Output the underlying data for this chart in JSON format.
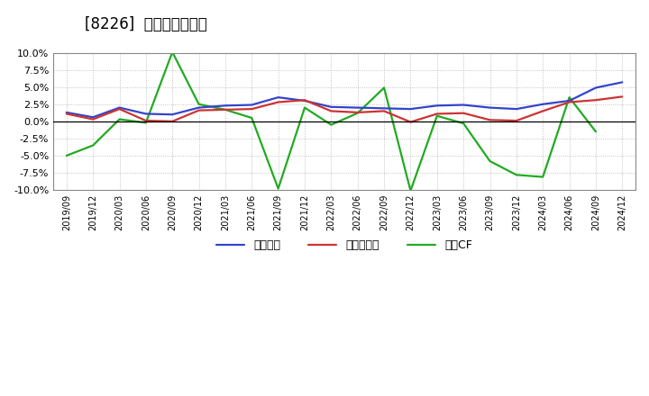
{
  "title": "[8226]  マージンの推移",
  "x_labels": [
    "2019/09",
    "2019/12",
    "2020/03",
    "2020/06",
    "2020/09",
    "2020/12",
    "2021/03",
    "2021/06",
    "2021/09",
    "2021/12",
    "2022/03",
    "2022/06",
    "2022/09",
    "2022/12",
    "2023/03",
    "2023/06",
    "2023/09",
    "2023/12",
    "2024/03",
    "2024/06",
    "2024/09",
    "2024/12"
  ],
  "keijo_rieki": [
    1.3,
    0.6,
    2.0,
    1.1,
    1.0,
    2.0,
    2.3,
    2.4,
    3.5,
    3.0,
    2.1,
    2.0,
    1.9,
    1.8,
    2.3,
    2.4,
    2.0,
    1.8,
    2.5,
    3.0,
    4.9,
    5.7
  ],
  "touki_junrieki": [
    1.1,
    0.3,
    1.8,
    0.1,
    0.0,
    1.6,
    1.7,
    1.8,
    2.8,
    3.1,
    1.5,
    1.3,
    1.5,
    -0.1,
    1.1,
    1.2,
    0.2,
    0.1,
    1.5,
    2.8,
    3.1,
    3.6
  ],
  "eigyo_cf": [
    -5.0,
    -3.5,
    0.3,
    -0.2,
    10.1,
    2.5,
    1.7,
    0.5,
    -9.8,
    2.0,
    -0.5,
    1.2,
    4.9,
    -10.1,
    0.8,
    -0.3,
    -5.8,
    -7.8,
    -8.1,
    3.5,
    -1.5,
    null
  ],
  "keijo_color": "#3344cc",
  "touki_color": "#cc3333",
  "eigyo_color": "#22aa22",
  "ylim": [
    -10.0,
    10.0
  ],
  "yticks": [
    -10.0,
    -7.5,
    -5.0,
    -2.5,
    0.0,
    2.5,
    5.0,
    7.5,
    10.0
  ],
  "legend_labels": [
    "経常利益",
    "当期純利益",
    "営業CF"
  ],
  "background_color": "#ffffff",
  "plot_bg_color": "#ffffff",
  "grid_color": "#aaaaaa"
}
